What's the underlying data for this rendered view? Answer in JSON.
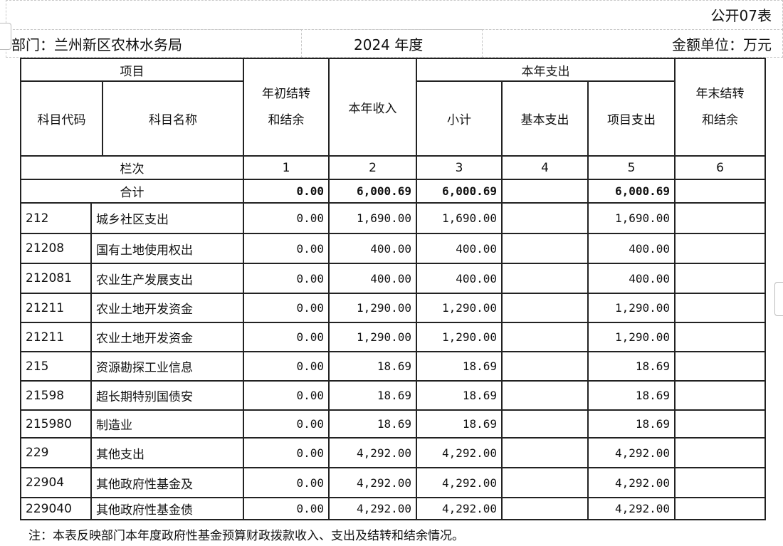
{
  "form_label": "公开07表",
  "department": "部门：兰州新区农林水务局",
  "year": "2024 年度",
  "unit": "金额单位：万元",
  "headers": {
    "project": "项目",
    "code": "科目代码",
    "name": "科目名称",
    "opening": [
      "年初结转",
      "和结余"
    ],
    "income": "本年收入",
    "expense": "本年支出",
    "subtotal": "小计",
    "basic": "基本支出",
    "project_exp": "项目支出",
    "closing": [
      "年末结转",
      "和结余"
    ],
    "column_index_label": "栏次",
    "column_index": [
      "1",
      "2",
      "3",
      "4",
      "5",
      "6"
    ]
  },
  "total": {
    "label": "合计",
    "values": [
      "0.00",
      "6,000.69",
      "6,000.69",
      "",
      "6,000.69",
      ""
    ]
  },
  "rows": [
    {
      "code": "212",
      "name": "城乡社区支出",
      "values": [
        "0.00",
        "1,690.00",
        "1,690.00",
        "",
        "1,690.00",
        ""
      ]
    },
    {
      "code": "21208",
      "name": "国有土地使用权出",
      "values": [
        "0.00",
        "400.00",
        "400.00",
        "",
        "400.00",
        ""
      ]
    },
    {
      "code": "212081",
      "name": "农业生产发展支出",
      "values": [
        "0.00",
        "400.00",
        "400.00",
        "",
        "400.00",
        ""
      ]
    },
    {
      "code": "21211",
      "name": "农业土地开发资金",
      "values": [
        "0.00",
        "1,290.00",
        "1,290.00",
        "",
        "1,290.00",
        ""
      ]
    },
    {
      "code": "21211",
      "name": "农业土地开发资金",
      "values": [
        "0.00",
        "1,290.00",
        "1,290.00",
        "",
        "1,290.00",
        ""
      ]
    },
    {
      "code": "215",
      "name": "资源勘探工业信息",
      "values": [
        "0.00",
        "18.69",
        "18.69",
        "",
        "18.69",
        ""
      ]
    },
    {
      "code": "21598",
      "name": "超长期特别国债安",
      "values": [
        "0.00",
        "18.69",
        "18.69",
        "",
        "18.69",
        ""
      ]
    },
    {
      "code": "215980",
      "name": "制造业",
      "values": [
        "0.00",
        "18.69",
        "18.69",
        "",
        "18.69",
        ""
      ]
    },
    {
      "code": "229",
      "name": "其他支出",
      "values": [
        "0.00",
        "4,292.00",
        "4,292.00",
        "",
        "4,292.00",
        ""
      ]
    },
    {
      "code": "22904",
      "name": "其他政府性基金及",
      "values": [
        "0.00",
        "4,292.00",
        "4,292.00",
        "",
        "4,292.00",
        ""
      ]
    },
    {
      "code": "229040",
      "name": "其他政府性基金债",
      "values": [
        "0.00",
        "4,292.00",
        "4,292.00",
        "",
        "4,292.00",
        ""
      ]
    }
  ],
  "note": "注：本表反映部门本年度政府性基金预算财政拨款收入、支出及结转和结余情况。"
}
